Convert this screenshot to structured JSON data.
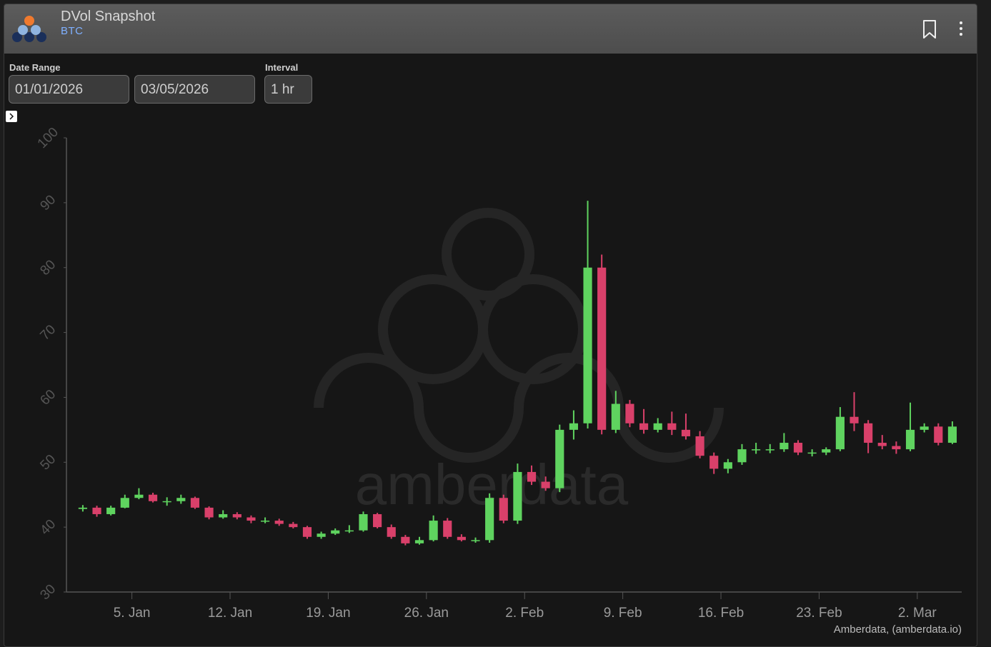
{
  "header": {
    "title": "DVol Snapshot",
    "subtitle": "BTC"
  },
  "controls": {
    "date_range_label": "Date Range",
    "start": "01/01/2026",
    "end": "03/05/2026",
    "interval_label": "Interval",
    "interval": "1 hr"
  },
  "chart_data": {
    "type": "candlestick",
    "x": [
      "2026-01-01",
      "2026-01-02",
      "2026-01-03",
      "2026-01-04",
      "2026-01-05",
      "2026-01-06",
      "2026-01-07",
      "2026-01-08",
      "2026-01-09",
      "2026-01-10",
      "2026-01-11",
      "2026-01-12",
      "2026-01-13",
      "2026-01-14",
      "2026-01-15",
      "2026-01-16",
      "2026-01-17",
      "2026-01-18",
      "2026-01-19",
      "2026-01-20",
      "2026-01-21",
      "2026-01-22",
      "2026-01-23",
      "2026-01-24",
      "2026-01-25",
      "2026-01-26",
      "2026-01-27",
      "2026-01-28",
      "2026-01-29",
      "2026-01-30",
      "2026-01-31",
      "2026-02-01",
      "2026-02-02",
      "2026-02-03",
      "2026-02-04",
      "2026-02-05",
      "2026-02-06",
      "2026-02-07",
      "2026-02-08",
      "2026-02-09",
      "2026-02-10",
      "2026-02-11",
      "2026-02-12",
      "2026-02-13",
      "2026-02-14",
      "2026-02-15",
      "2026-02-16",
      "2026-02-17",
      "2026-02-18",
      "2026-02-19",
      "2026-02-20",
      "2026-02-21",
      "2026-02-22",
      "2026-02-23",
      "2026-02-24",
      "2026-02-25",
      "2026-02-26",
      "2026-02-27",
      "2026-02-28",
      "2026-03-01",
      "2026-03-02",
      "2026-03-03",
      "2026-03-04"
    ],
    "open": [
      42.8,
      43,
      42,
      43,
      44.5,
      45,
      44,
      44,
      44.5,
      43,
      41.5,
      42,
      41.5,
      41,
      41,
      40.5,
      40,
      38.5,
      39,
      39.5,
      39.5,
      42,
      40,
      38.5,
      37.5,
      38,
      41,
      38.5,
      38,
      38,
      44.5,
      41,
      48.5,
      47,
      46,
      55,
      56,
      80,
      55,
      59,
      56,
      55,
      56,
      55,
      54,
      51,
      49,
      50,
      52,
      52,
      52,
      53,
      51.5,
      51.5,
      52,
      57,
      56,
      53,
      52.5,
      52,
      55,
      55.5,
      53
    ],
    "high": [
      43.4,
      43.3,
      43.3,
      45,
      46,
      45.3,
      44.6,
      45,
      44.7,
      43.2,
      42.6,
      42.3,
      41.8,
      41.5,
      41.3,
      40.8,
      40.2,
      39.3,
      39.8,
      40.3,
      42.4,
      42.2,
      40.4,
      38.8,
      38.5,
      41.8,
      41.4,
      38.9,
      38.4,
      45.2,
      45,
      49.8,
      49.5,
      47.8,
      55.8,
      58,
      90.3,
      82,
      61,
      59.6,
      58.2,
      56.8,
      57.8,
      57.5,
      54.8,
      51.5,
      50.5,
      52.8,
      53,
      52.8,
      54.5,
      53.4,
      52,
      52.3,
      58.5,
      60.8,
      56.5,
      54.2,
      53.2,
      59.2,
      56,
      56,
      56.3
    ],
    "low": [
      42.4,
      41.6,
      41.8,
      42.9,
      44.3,
      43.8,
      43.3,
      43.6,
      42.8,
      41.2,
      41.3,
      41.2,
      40.6,
      40.6,
      40.2,
      39.8,
      38.2,
      38.2,
      38.8,
      39.1,
      39.3,
      39.8,
      38.2,
      37.2,
      37.3,
      37.8,
      38.2,
      37.8,
      37.6,
      37.6,
      40.6,
      40.5,
      46.5,
      45.6,
      45.4,
      53.5,
      55.2,
      54.3,
      54.5,
      55.4,
      54.4,
      54.6,
      54.2,
      53.5,
      50.6,
      48.2,
      48.3,
      49.6,
      51.3,
      51.4,
      51.6,
      51.1,
      50.9,
      51.1,
      51.7,
      54.8,
      51.4,
      52,
      51.3,
      51.7,
      54.6,
      52.6,
      52.8
    ],
    "close": [
      43,
      42,
      43,
      44.5,
      45,
      44,
      44,
      44.5,
      43,
      41.5,
      42,
      41.5,
      41,
      41,
      40.5,
      40,
      38.5,
      39,
      39.5,
      39.5,
      42,
      40,
      38.5,
      37.5,
      38,
      41,
      38.5,
      38,
      38,
      44.5,
      41,
      48.5,
      47,
      46,
      55,
      56,
      80,
      55,
      59,
      56,
      55,
      56,
      55,
      54,
      51,
      49,
      50,
      52,
      52,
      52,
      53,
      51.5,
      51.5,
      52,
      57,
      56,
      53,
      52.5,
      52,
      55,
      55.5,
      53,
      55.5
    ],
    "up_color": "#5fd35f",
    "down_color": "#d9406a",
    "xlim": [
      "2025-12-31T08:00",
      "2026-03-05T04:00"
    ],
    "xticks": [
      {
        "value": "2026-01-05",
        "label": "5. Jan"
      },
      {
        "value": "2026-01-12",
        "label": "12. Jan"
      },
      {
        "value": "2026-01-19",
        "label": "19. Jan"
      },
      {
        "value": "2026-01-26",
        "label": "26. Jan"
      },
      {
        "value": "2026-02-02",
        "label": "2. Feb"
      },
      {
        "value": "2026-02-09",
        "label": "9. Feb"
      },
      {
        "value": "2026-02-16",
        "label": "16. Feb"
      },
      {
        "value": "2026-02-23",
        "label": "23. Feb"
      },
      {
        "value": "2026-03-02",
        "label": "2. Mar"
      }
    ],
    "ylim": [
      30,
      100
    ],
    "yticks": [
      30,
      40,
      50,
      60,
      70,
      80,
      90,
      100
    ],
    "watermark": "amberdata",
    "credit": "Amberdata, (amberdata.io)"
  }
}
